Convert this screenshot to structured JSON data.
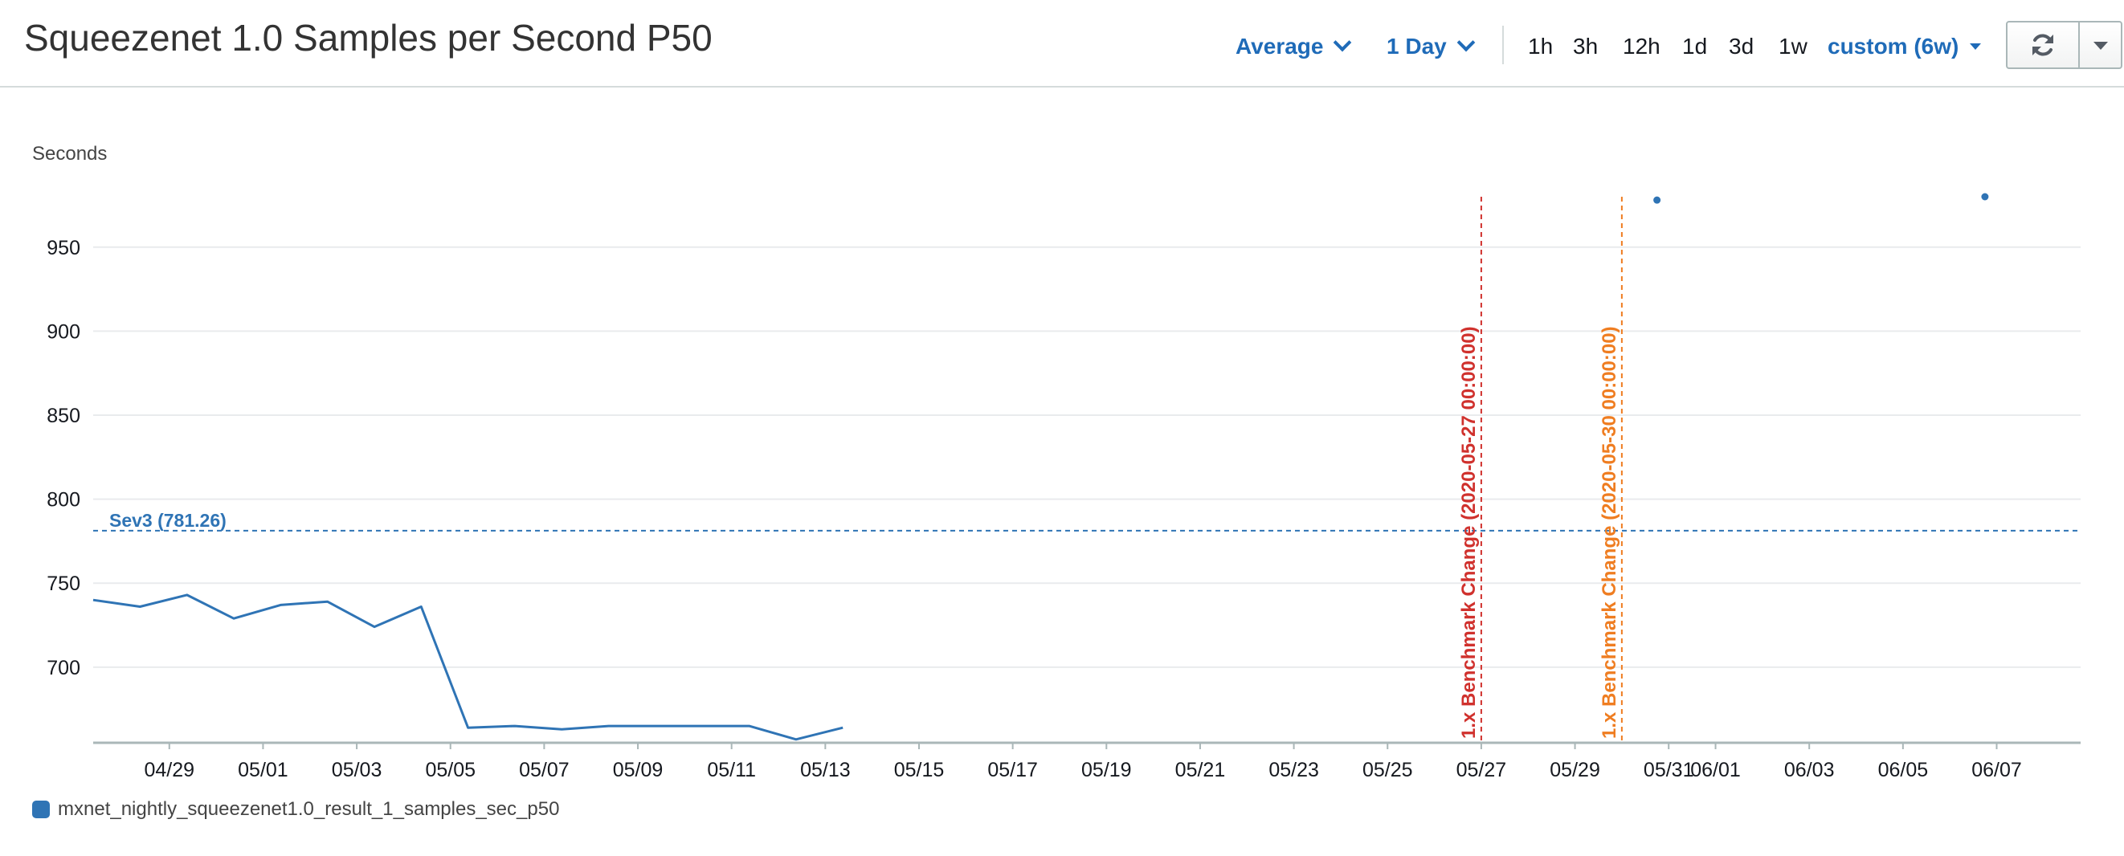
{
  "header": {
    "title": "Squeezenet 1.0 Samples per Second P50",
    "statistic_label": "Average",
    "period_label": "1 Day",
    "time_ranges": [
      "1h",
      "3h",
      "12h",
      "1d",
      "3d",
      "1w"
    ],
    "custom_range_label": "custom (6w)"
  },
  "icons": {
    "refresh": "refresh-icon",
    "dropdown": "caret-down-icon"
  },
  "colors": {
    "accent": "#1f6bb8",
    "series": "#2f74b5",
    "annotation_red": "#d0312d",
    "annotation_orange": "#ef7d21",
    "grid": "#e9ebed"
  },
  "chart_data": {
    "type": "line",
    "ylabel": "Seconds",
    "xlabel": "",
    "ylim": [
      655,
      980
    ],
    "yticks": [
      700,
      750,
      800,
      850,
      900,
      950
    ],
    "grid": true,
    "legend_position": "bottom-left",
    "x_start": "2020-04-27T09:00",
    "x_end": "2020-06-08T19:00",
    "xtick_labels": [
      {
        "date": "2020-04-29",
        "label": "04/29"
      },
      {
        "date": "2020-05-01",
        "label": "05/01"
      },
      {
        "date": "2020-05-03",
        "label": "05/03"
      },
      {
        "date": "2020-05-05",
        "label": "05/05"
      },
      {
        "date": "2020-05-07",
        "label": "05/07"
      },
      {
        "date": "2020-05-09",
        "label": "05/09"
      },
      {
        "date": "2020-05-11",
        "label": "05/11"
      },
      {
        "date": "2020-05-13",
        "label": "05/13"
      },
      {
        "date": "2020-05-15",
        "label": "05/15"
      },
      {
        "date": "2020-05-17",
        "label": "05/17"
      },
      {
        "date": "2020-05-19",
        "label": "05/19"
      },
      {
        "date": "2020-05-21",
        "label": "05/21"
      },
      {
        "date": "2020-05-23",
        "label": "05/23"
      },
      {
        "date": "2020-05-25",
        "label": "05/25"
      },
      {
        "date": "2020-05-27",
        "label": "05/27"
      },
      {
        "date": "2020-05-29",
        "label": "05/29"
      },
      {
        "date": "2020-05-31",
        "label": "05/31"
      },
      {
        "date": "2020-06-01",
        "label": "06/01"
      },
      {
        "date": "2020-06-03",
        "label": "06/03"
      },
      {
        "date": "2020-06-05",
        "label": "06/05"
      },
      {
        "date": "2020-06-07",
        "label": "06/07"
      }
    ],
    "series": [
      {
        "name": "mxnet_nightly_squeezenet1.0_result_1_samples_sec_p50",
        "color": "#2f74b5",
        "segments": [
          [
            {
              "x": "2020-04-27T09:00",
              "y": 740
            },
            {
              "x": "2020-04-28T09:00",
              "y": 736
            },
            {
              "x": "2020-04-29T09:00",
              "y": 743
            },
            {
              "x": "2020-04-30T09:00",
              "y": 729
            },
            {
              "x": "2020-05-01T09:00",
              "y": 737
            },
            {
              "x": "2020-05-02T09:00",
              "y": 739
            },
            {
              "x": "2020-05-03T09:00",
              "y": 724
            },
            {
              "x": "2020-05-04T09:00",
              "y": 736
            },
            {
              "x": "2020-05-05T09:00",
              "y": 664
            },
            {
              "x": "2020-05-06T09:00",
              "y": 665
            },
            {
              "x": "2020-05-07T09:00",
              "y": 663
            },
            {
              "x": "2020-05-08T09:00",
              "y": 665
            },
            {
              "x": "2020-05-09T09:00",
              "y": 665
            },
            {
              "x": "2020-05-10T09:00",
              "y": 665
            },
            {
              "x": "2020-05-11T09:00",
              "y": 665
            },
            {
              "x": "2020-05-12T09:00",
              "y": 657
            },
            {
              "x": "2020-05-13T09:00",
              "y": 664
            }
          ],
          [
            {
              "x": "2020-05-30T18:00",
              "y": 978
            }
          ],
          [
            {
              "x": "2020-06-06T18:00",
              "y": 980
            }
          ]
        ]
      }
    ],
    "threshold": {
      "label": "Sev3 (781.26)",
      "value": 781.26,
      "color": "#2f74b5"
    },
    "annotations": [
      {
        "x": "2020-05-27T00:00",
        "label": "1.x Benchmark Change (2020-05-27 00:00:00)",
        "color": "#d0312d"
      },
      {
        "x": "2020-05-30T00:00",
        "label": "1.x Benchmark Change (2020-05-30 00:00:00)",
        "color": "#ef7d21"
      }
    ]
  },
  "legend": {
    "label": "mxnet_nightly_squeezenet1.0_result_1_samples_sec_p50",
    "color": "#2f74b5"
  }
}
